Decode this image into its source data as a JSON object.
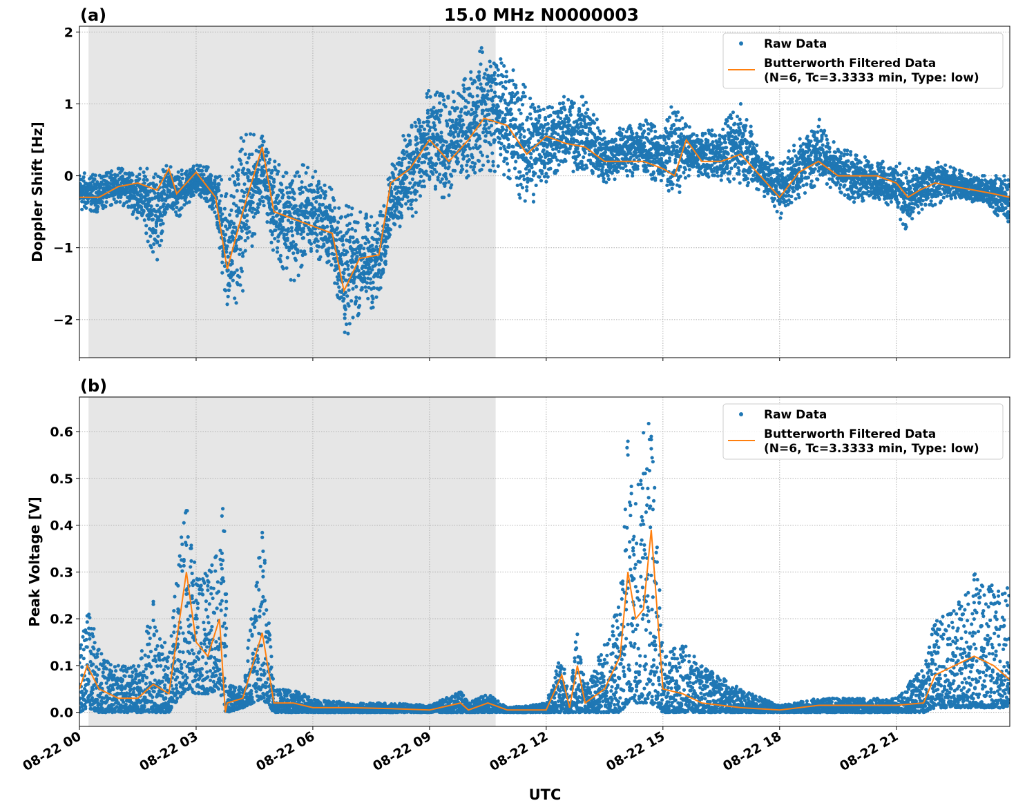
{
  "colors": {
    "raw": "#1f77b4",
    "filtered": "#ff7f0e",
    "shade": "#e6e6e6",
    "grid": "#b0b0b0"
  },
  "figure_title": "15.0 MHz N0000003",
  "xlabel": "UTC",
  "chart_data": [
    {
      "type": "scatter",
      "panel_label": "(a)",
      "title": "15.0 MHz N0000003",
      "xlabel": "",
      "ylabel": "Doppler Shift [Hz]",
      "xlim": [
        "08-22 00:00",
        "08-22 23:55"
      ],
      "ylim": [
        -2.53,
        2.08
      ],
      "yticks": [
        -2,
        -1,
        0,
        1,
        2
      ],
      "ytick_labels": [
        "−2",
        "−1",
        "0",
        "1",
        "2"
      ],
      "xticks": [
        "08-22 00:00",
        "08-22 03:00",
        "08-22 06:00",
        "08-22 09:00",
        "08-22 12:00",
        "08-22 15:00",
        "08-22 18:00",
        "08-22 21:00"
      ],
      "xtick_labels": [],
      "grid": true,
      "shaded_interval": [
        "08-22 00:14",
        "08-22 10:42"
      ],
      "legend": {
        "placement": "top-right",
        "entries": [
          "Raw Data",
          "Butterworth Filtered Data",
          "(N=6, Tc=3.3333 min, Type: low)"
        ]
      },
      "series": [
        {
          "name": "Raw Data",
          "kind": "scatter-envelope",
          "x": [
            "00:00",
            "00:30",
            "01:00",
            "01:30",
            "02:00",
            "02:18",
            "02:30",
            "03:00",
            "03:30",
            "03:48",
            "04:12",
            "04:42",
            "05:00",
            "05:30",
            "06:00",
            "06:30",
            "06:48",
            "07:12",
            "07:42",
            "08:00",
            "08:30",
            "09:00",
            "09:30",
            "10:00",
            "10:24",
            "11:00",
            "11:30",
            "12:00",
            "12:30",
            "13:00",
            "13:30",
            "14:00",
            "14:30",
            "15:00",
            "15:18",
            "15:36",
            "16:00",
            "16:30",
            "17:00",
            "17:30",
            "18:00",
            "18:30",
            "19:00",
            "19:30",
            "20:00",
            "20:30",
            "21:00",
            "21:18",
            "21:36",
            "22:00",
            "22:30",
            "23:00",
            "23:30",
            "23:55"
          ],
          "low": [
            -0.5,
            -0.5,
            -0.35,
            -0.6,
            -1.2,
            -0.4,
            -0.6,
            -0.3,
            -0.6,
            -2.0,
            -1.6,
            -0.3,
            -1.1,
            -1.5,
            -1.1,
            -1.3,
            -2.3,
            -1.9,
            -1.8,
            -0.8,
            -0.6,
            -0.3,
            -0.3,
            0.0,
            0.1,
            0.0,
            -0.5,
            -0.1,
            0.1,
            0.0,
            -0.1,
            0.0,
            0.0,
            -0.1,
            -0.4,
            0.0,
            0.0,
            -0.1,
            -0.1,
            -0.2,
            -0.6,
            -0.3,
            -0.1,
            -0.2,
            -0.4,
            -0.3,
            -0.5,
            -0.8,
            -0.5,
            -0.4,
            -0.3,
            -0.4,
            -0.5,
            -0.7
          ],
          "high": [
            0.05,
            0.0,
            0.1,
            0.1,
            0.1,
            0.15,
            0.05,
            0.15,
            0.1,
            -0.1,
            0.6,
            0.55,
            0.2,
            0.2,
            0.1,
            -0.2,
            -0.4,
            -0.5,
            -0.6,
            0.1,
            0.8,
            1.2,
            1.1,
            1.4,
            1.85,
            1.6,
            1.2,
            1.1,
            1.1,
            1.1,
            0.6,
            0.7,
            0.8,
            0.6,
            1.1,
            0.7,
            0.6,
            0.7,
            1.0,
            0.4,
            0.2,
            0.5,
            0.8,
            0.4,
            0.3,
            0.2,
            0.2,
            0.1,
            0.1,
            0.2,
            0.1,
            0.0,
            0.0,
            0.0
          ]
        },
        {
          "name": "Butterworth Filtered Data (N=6, Tc=3.3333 min, Type: low)",
          "kind": "line",
          "x": [
            "00:00",
            "00:30",
            "01:00",
            "01:30",
            "02:00",
            "02:18",
            "02:30",
            "03:00",
            "03:30",
            "03:48",
            "04:12",
            "04:42",
            "05:00",
            "05:30",
            "06:00",
            "06:30",
            "06:48",
            "07:12",
            "07:42",
            "08:00",
            "08:30",
            "09:00",
            "09:30",
            "10:00",
            "10:24",
            "11:00",
            "11:30",
            "12:00",
            "12:30",
            "13:00",
            "13:30",
            "14:00",
            "14:30",
            "15:00",
            "15:18",
            "15:36",
            "16:00",
            "16:30",
            "17:00",
            "17:30",
            "18:00",
            "18:30",
            "19:00",
            "19:30",
            "20:00",
            "20:30",
            "21:00",
            "21:18",
            "21:36",
            "22:00",
            "22:30",
            "23:00",
            "23:30",
            "23:55"
          ],
          "y": [
            -0.3,
            -0.3,
            -0.15,
            -0.1,
            -0.2,
            0.1,
            -0.25,
            0.05,
            -0.3,
            -1.3,
            -0.5,
            0.4,
            -0.5,
            -0.6,
            -0.7,
            -0.8,
            -1.6,
            -1.15,
            -1.1,
            -0.1,
            0.1,
            0.5,
            0.2,
            0.5,
            0.8,
            0.7,
            0.3,
            0.55,
            0.45,
            0.4,
            0.2,
            0.2,
            0.2,
            0.1,
            0.0,
            0.5,
            0.2,
            0.2,
            0.3,
            0.0,
            -0.3,
            0.05,
            0.2,
            0.0,
            0.0,
            0.0,
            -0.1,
            -0.3,
            -0.2,
            -0.1,
            -0.15,
            -0.2,
            -0.25,
            -0.3
          ]
        }
      ]
    },
    {
      "type": "scatter",
      "panel_label": "(b)",
      "xlabel": "UTC",
      "ylabel": "Peak Voltage [V]",
      "xlim": [
        "08-22 00:00",
        "08-22 23:55"
      ],
      "ylim": [
        -0.03,
        0.674
      ],
      "yticks": [
        0.0,
        0.1,
        0.2,
        0.3,
        0.4,
        0.5,
        0.6
      ],
      "ytick_labels": [
        "0.0",
        "0.1",
        "0.2",
        "0.3",
        "0.4",
        "0.5",
        "0.6"
      ],
      "xticks": [
        "08-22 00:00",
        "08-22 03:00",
        "08-22 06:00",
        "08-22 09:00",
        "08-22 12:00",
        "08-22 15:00",
        "08-22 18:00",
        "08-22 21:00"
      ],
      "xtick_labels": [
        "08-22 00",
        "08-22 03",
        "08-22 06",
        "08-22 09",
        "08-22 12",
        "08-22 15",
        "08-22 18",
        "08-22 21"
      ],
      "grid": true,
      "shaded_interval": [
        "08-22 00:14",
        "08-22 10:42"
      ],
      "legend": {
        "placement": "top-right",
        "entries": [
          "Raw Data",
          "Butterworth Filtered Data",
          "(N=6, Tc=3.3333 min, Type: low)"
        ]
      },
      "series": [
        {
          "name": "Raw Data",
          "kind": "scatter-envelope",
          "x": [
            "00:00",
            "00:12",
            "00:30",
            "01:00",
            "01:30",
            "01:54",
            "02:18",
            "02:45",
            "03:00",
            "03:18",
            "03:36",
            "03:45",
            "03:48",
            "04:12",
            "04:42",
            "05:00",
            "05:30",
            "06:00",
            "07:00",
            "08:00",
            "09:00",
            "09:48",
            "10:00",
            "10:30",
            "11:00",
            "12:00",
            "12:24",
            "12:36",
            "12:48",
            "13:00",
            "13:30",
            "13:54",
            "14:06",
            "14:18",
            "14:30",
            "14:42",
            "15:00",
            "15:30",
            "16:00",
            "17:00",
            "18:00",
            "19:00",
            "20:00",
            "21:00",
            "21:42",
            "22:00",
            "22:30",
            "23:00",
            "23:30",
            "23:55"
          ],
          "low": [
            0.0,
            0.01,
            0.0,
            0.0,
            0.0,
            0.0,
            0.0,
            0.05,
            0.04,
            0.04,
            0.05,
            0.0,
            0.0,
            0.01,
            0.03,
            0.0,
            0.0,
            0.0,
            0.0,
            0.0,
            0.0,
            0.0,
            0.0,
            0.0,
            0.0,
            0.0,
            0.0,
            0.0,
            0.0,
            0.0,
            0.0,
            0.0,
            0.02,
            0.02,
            0.02,
            0.02,
            0.0,
            0.0,
            0.0,
            0.0,
            0.0,
            0.0,
            0.0,
            0.0,
            0.0,
            0.01,
            0.01,
            0.01,
            0.01,
            0.01
          ],
          "high": [
            0.13,
            0.23,
            0.14,
            0.1,
            0.1,
            0.24,
            0.12,
            0.51,
            0.3,
            0.3,
            0.35,
            0.53,
            0.06,
            0.06,
            0.4,
            0.05,
            0.05,
            0.03,
            0.02,
            0.02,
            0.015,
            0.045,
            0.02,
            0.04,
            0.01,
            0.02,
            0.13,
            0.02,
            0.19,
            0.05,
            0.15,
            0.24,
            0.61,
            0.45,
            0.6,
            0.64,
            0.12,
            0.15,
            0.1,
            0.05,
            0.015,
            0.03,
            0.03,
            0.03,
            0.1,
            0.2,
            0.22,
            0.3,
            0.27,
            0.27
          ]
        },
        {
          "name": "Butterworth Filtered Data (N=6, Tc=3.3333 min, Type: low)",
          "kind": "line",
          "x": [
            "00:00",
            "00:12",
            "00:30",
            "01:00",
            "01:30",
            "01:54",
            "02:18",
            "02:45",
            "03:00",
            "03:18",
            "03:36",
            "03:45",
            "03:48",
            "04:12",
            "04:42",
            "05:00",
            "05:30",
            "06:00",
            "07:00",
            "08:00",
            "09:00",
            "09:48",
            "10:00",
            "10:30",
            "11:00",
            "12:00",
            "12:24",
            "12:36",
            "12:48",
            "13:00",
            "13:30",
            "13:54",
            "14:06",
            "14:18",
            "14:30",
            "14:42",
            "15:00",
            "15:30",
            "16:00",
            "17:00",
            "18:00",
            "19:00",
            "20:00",
            "21:00",
            "21:42",
            "22:00",
            "22:30",
            "23:00",
            "23:30",
            "23:55"
          ],
          "y": [
            0.05,
            0.1,
            0.05,
            0.03,
            0.03,
            0.06,
            0.04,
            0.3,
            0.15,
            0.12,
            0.2,
            0.0,
            0.02,
            0.03,
            0.17,
            0.02,
            0.02,
            0.01,
            0.01,
            0.008,
            0.005,
            0.02,
            0.005,
            0.02,
            0.005,
            0.005,
            0.08,
            0.01,
            0.1,
            0.02,
            0.05,
            0.12,
            0.3,
            0.2,
            0.22,
            0.39,
            0.05,
            0.04,
            0.02,
            0.01,
            0.005,
            0.015,
            0.015,
            0.015,
            0.02,
            0.08,
            0.1,
            0.12,
            0.1,
            0.07
          ]
        }
      ]
    }
  ]
}
